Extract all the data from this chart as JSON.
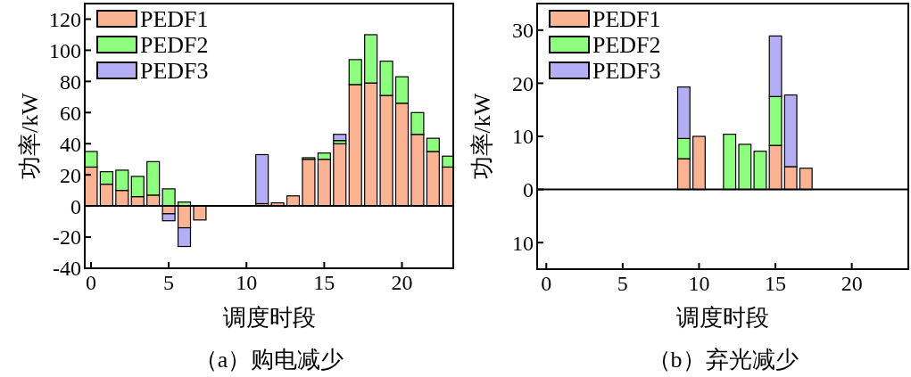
{
  "chart_data": [
    {
      "type": "bar",
      "title": "（a）购电减少",
      "xlabel": "调度时段",
      "ylabel": "功率/kW",
      "stacked": true,
      "legend": "top left",
      "grid": false,
      "x": [
        0,
        1,
        2,
        3,
        4,
        5,
        6,
        7,
        11,
        12,
        13,
        14,
        15,
        16,
        17,
        18,
        19,
        20,
        21,
        22,
        23
      ],
      "series": [
        {
          "name": "PEDF1",
          "color": "#fab493",
          "values": [
            25,
            14,
            10,
            6,
            7,
            -5,
            -14,
            -9,
            1.5,
            2,
            6.5,
            30,
            30,
            40,
            78,
            79,
            71,
            66,
            46,
            35,
            25
          ]
        },
        {
          "name": "PEDF2",
          "color": "#8efe7f",
          "values": [
            10,
            8,
            13,
            13,
            21.5,
            11,
            2.5,
            null,
            null,
            null,
            null,
            1,
            4,
            2,
            16,
            31,
            22,
            17,
            14,
            8.5,
            7
          ]
        },
        {
          "name": "PEDF3",
          "color": "#b5aef5",
          "values": [
            null,
            null,
            null,
            null,
            null,
            -4.5,
            -12,
            null,
            31.5,
            null,
            null,
            null,
            null,
            4,
            null,
            null,
            null,
            null,
            null,
            null,
            null
          ]
        }
      ],
      "xlim": [
        -0.4,
        23.3
      ],
      "xticks": [
        0,
        5,
        10,
        15,
        20
      ],
      "ylim": [
        -40,
        130
      ],
      "yticks": [
        -40,
        -20,
        0,
        20,
        40,
        60,
        80,
        100,
        120
      ],
      "ref_lines": [
        {
          "axis": "y",
          "value": 0
        }
      ]
    },
    {
      "type": "bar",
      "title": "（b）弃光减少",
      "xlabel": "调度时段",
      "ylabel": "功率/kW",
      "stacked": true,
      "legend": "top left",
      "grid": false,
      "x": [
        9,
        10,
        12,
        13,
        14,
        15,
        16,
        17
      ],
      "series": [
        {
          "name": "PEDF1",
          "color": "#fab493",
          "values": [
            5.8,
            10,
            null,
            null,
            null,
            8.3,
            4.3,
            4
          ]
        },
        {
          "name": "PEDF2",
          "color": "#8efe7f",
          "values": [
            3.8,
            null,
            10.4,
            8.5,
            7.2,
            9.2,
            null,
            null
          ]
        },
        {
          "name": "PEDF3",
          "color": "#b5aef5",
          "values": [
            9.7,
            null,
            null,
            null,
            null,
            11.4,
            13.5,
            null
          ]
        }
      ],
      "xlim": [
        -0.6,
        23.7
      ],
      "xticks": [
        0,
        5,
        10,
        15,
        20
      ],
      "ylim": [
        -15,
        35
      ],
      "yticks": [
        {
          "value": -10,
          "label": "10"
        },
        0,
        10,
        20,
        30
      ],
      "ref_lines": [
        {
          "axis": "y",
          "value": 0
        }
      ]
    }
  ]
}
